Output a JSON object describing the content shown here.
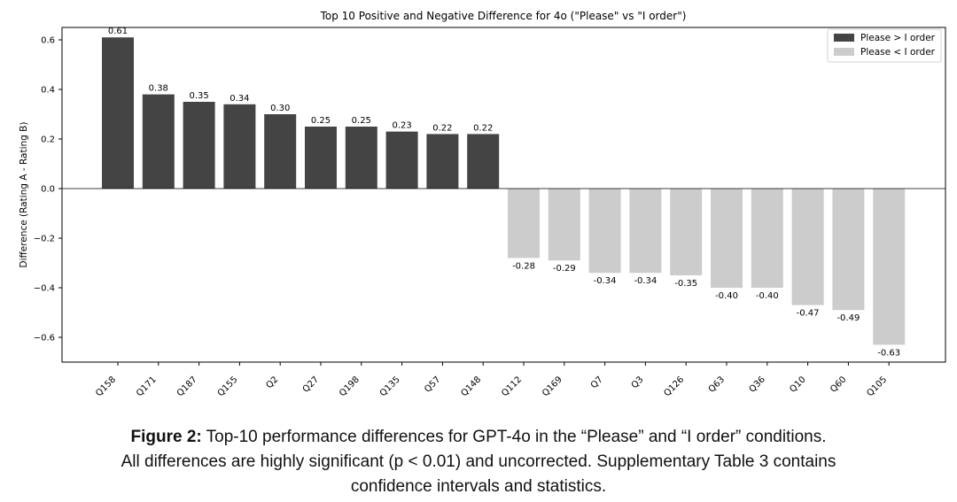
{
  "chart_data": {
    "type": "bar",
    "title": "Top 10 Positive and Negative Difference for 4o (\"Please\" vs \"I order\")",
    "xlabel": "",
    "ylabel": "Difference (Rating A - Rating B)",
    "ylim": [
      -0.7,
      0.65
    ],
    "yticks": [
      "0.6",
      "0.4",
      "0.2",
      "0.0",
      "−0.2",
      "−0.4",
      "−0.6"
    ],
    "ytick_values": [
      0.6,
      0.4,
      0.2,
      0.0,
      -0.2,
      -0.4,
      -0.6
    ],
    "categories": [
      "Q158",
      "Q171",
      "Q187",
      "Q155",
      "Q2",
      "Q27",
      "Q198",
      "Q135",
      "Q57",
      "Q148",
      "Q112",
      "Q169",
      "Q7",
      "Q3",
      "Q126",
      "Q63",
      "Q36",
      "Q10",
      "Q60",
      "Q105"
    ],
    "values": [
      0.61,
      0.38,
      0.35,
      0.34,
      0.3,
      0.25,
      0.25,
      0.23,
      0.22,
      0.22,
      -0.28,
      -0.29,
      -0.34,
      -0.34,
      -0.35,
      -0.4,
      -0.4,
      -0.47,
      -0.49,
      -0.63
    ],
    "value_labels": [
      "0.61",
      "0.38",
      "0.35",
      "0.34",
      "0.30",
      "0.25",
      "0.25",
      "0.23",
      "0.22",
      "0.22",
      "-0.28",
      "-0.29",
      "-0.34",
      "-0.34",
      "-0.35",
      "-0.40",
      "-0.40",
      "-0.47",
      "-0.49",
      "-0.63"
    ],
    "legend": [
      {
        "label": "Please > I order",
        "color": "#444444"
      },
      {
        "label": "Please < I order",
        "color": "#cccccc"
      }
    ],
    "legend_position": "top-right",
    "grid": false,
    "colors": {
      "positive": "#444444",
      "negative": "#cccccc"
    }
  },
  "caption": {
    "bold": "Figure 2:",
    "line1": "Top-10 performance differences for GPT-4o in the “Please” and “I order” conditions.",
    "line2": "All differences are highly significant (p < 0.01) and uncorrected. Supplementary Table 3 contains",
    "line3": "confidence intervals and statistics."
  }
}
